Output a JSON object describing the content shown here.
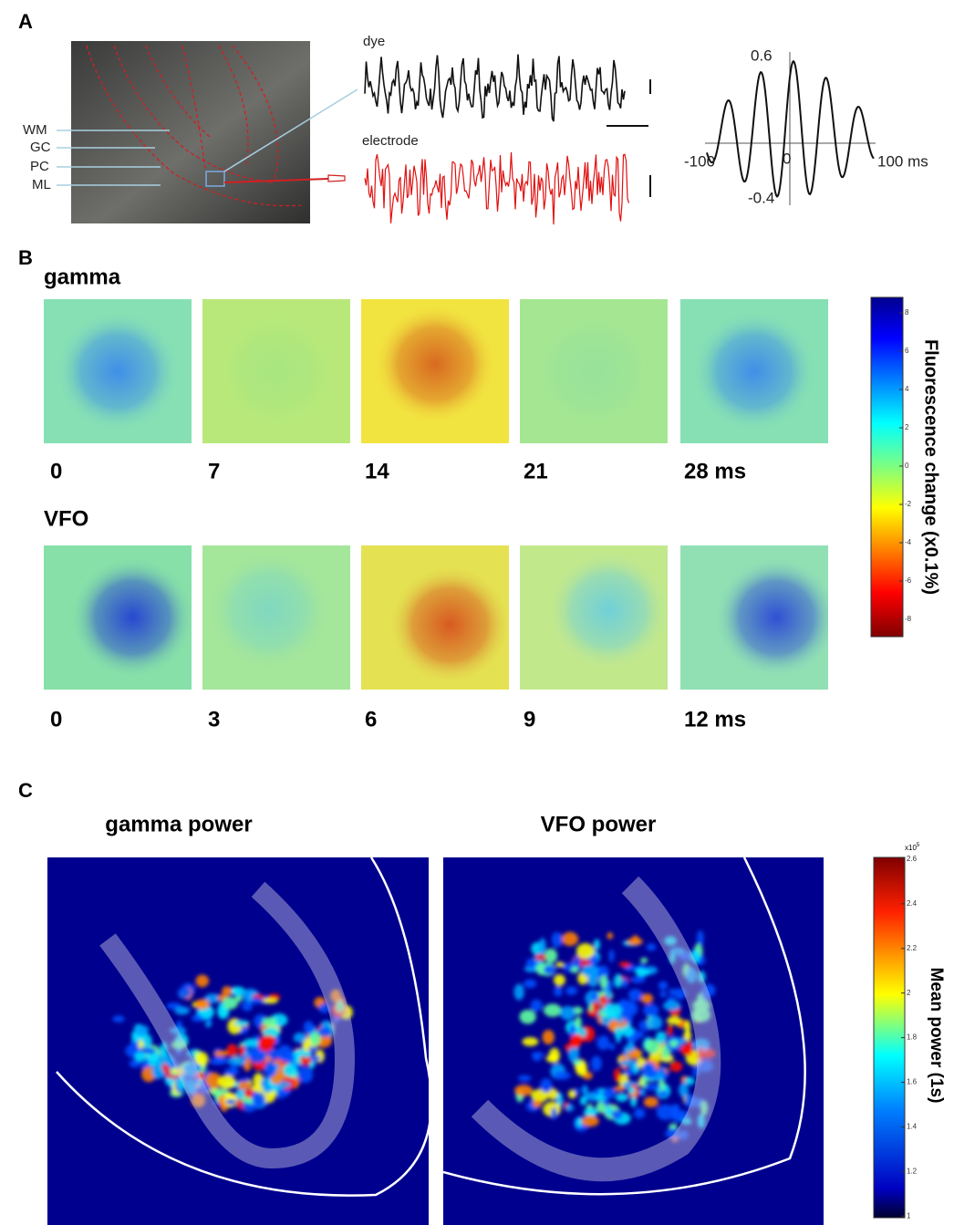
{
  "panel_a": {
    "label": "A",
    "layer_labels": [
      "WM",
      "GC",
      "PC",
      "ML"
    ],
    "trace_labels": [
      "dye",
      "electrode"
    ],
    "correlogram_labels": [
      "0.6",
      "-0.4",
      "-100",
      "0",
      "100 ms"
    ]
  },
  "panel_b": {
    "label": "B",
    "rows": [
      {
        "title": "gamma",
        "times": [
          "0",
          "7",
          "14",
          "21",
          "28 ms"
        ]
      },
      {
        "title": "VFO",
        "times": [
          "0",
          "3",
          "6",
          "9",
          "12 ms"
        ]
      }
    ],
    "colorbar": {
      "title": "Fluorescence change (x0.1%)",
      "ticks": [
        "8",
        "6",
        "4",
        "2",
        "0",
        "-2",
        "-4",
        "-6",
        "-8"
      ]
    }
  },
  "panel_c": {
    "label": "C",
    "titles": [
      "gamma power",
      "VFO power"
    ],
    "colorbar": {
      "title": "Mean power (1s)",
      "scale": "x10",
      "scale_exponent": "5",
      "ticks": [
        "2.6",
        "2.4",
        "2.2",
        "2",
        "1.8",
        "1.6",
        "1.4",
        "1.2",
        "1"
      ]
    }
  }
}
